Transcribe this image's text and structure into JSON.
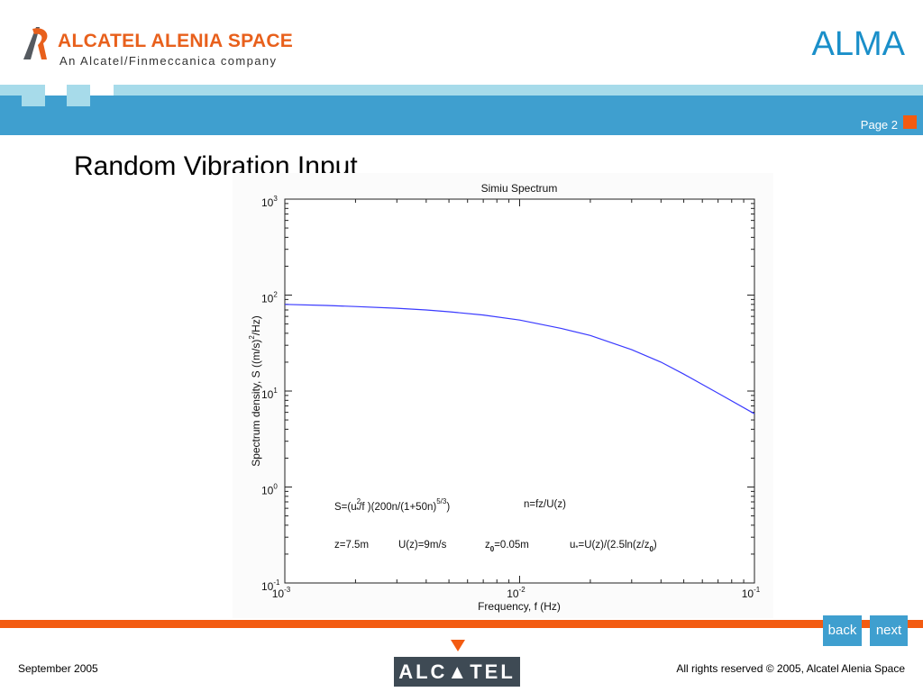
{
  "header": {
    "company_name": "ALCATEL ALENIA SPACE",
    "company_tagline": "An Alcatel/Finmeccanica company",
    "project": "ALMA",
    "page_label": "Page 2"
  },
  "slide": {
    "title": "Random Vibration Input"
  },
  "chart_data": {
    "type": "line",
    "title": "Simiu Spectrum",
    "xlabel": "Frequency, f (Hz)",
    "ylabel": "Spectrum density, S ((m/s)²/Hz)",
    "xscale": "log",
    "yscale": "log",
    "xlim": [
      0.001,
      0.1
    ],
    "ylim": [
      0.1,
      1000
    ],
    "x_ticks": [
      {
        "base": "10",
        "exp": "-3",
        "value": 0.001
      },
      {
        "base": "10",
        "exp": "-2",
        "value": 0.01
      },
      {
        "base": "10",
        "exp": "-1",
        "value": 0.1
      }
    ],
    "y_ticks": [
      {
        "base": "10",
        "exp": "-1",
        "value": 0.1
      },
      {
        "base": "10",
        "exp": "0",
        "value": 1
      },
      {
        "base": "10",
        "exp": "1",
        "value": 10
      },
      {
        "base": "10",
        "exp": "2",
        "value": 100
      },
      {
        "base": "10",
        "exp": "3",
        "value": 1000
      }
    ],
    "grid": false,
    "line_color": "#3a3aff",
    "series": [
      {
        "x": [
          0.001,
          0.0015,
          0.002,
          0.003,
          0.004,
          0.005,
          0.007,
          0.01,
          0.015,
          0.02,
          0.03,
          0.04,
          0.05,
          0.07,
          0.1
        ],
        "y": [
          80,
          78,
          76,
          73,
          70,
          67,
          62,
          55,
          45,
          38,
          27,
          20,
          15,
          9.5,
          5.8
        ]
      }
    ],
    "annotations": [
      {
        "text": "S=(u*²/f )(200n/(1+50n)^5/3)"
      },
      {
        "text": "n=fz/U(z)"
      },
      {
        "text": "z=7.5m"
      },
      {
        "text": "U(z)=9m/s"
      },
      {
        "text": "z0=0.05m"
      },
      {
        "text": "u*=U(z)/(2.5ln(z/z0)"
      }
    ]
  },
  "footer": {
    "back_label": "back",
    "next_label": "next",
    "logo_text": "ALC▲TEL",
    "date": "September 2005",
    "rights": "All rights reserved © 2005, Alcatel Alenia Space"
  }
}
